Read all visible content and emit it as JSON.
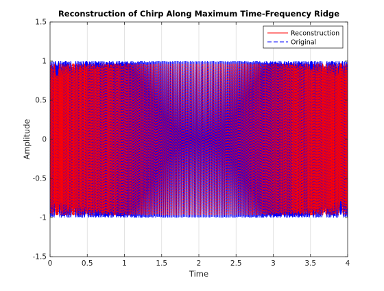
{
  "chart_data": {
    "type": "line",
    "title": "Reconstruction of Chirp Along Maximum Time-Frequency Ridge",
    "xlabel": "Time",
    "ylabel": "Amplitude",
    "xlim": [
      0,
      4
    ],
    "ylim": [
      -1.5,
      1.5
    ],
    "xticks": [
      0,
      0.5,
      1,
      1.5,
      2,
      2.5,
      3,
      3.5,
      4
    ],
    "xtick_labels": [
      "0",
      "0.5",
      "1",
      "1.5",
      "2",
      "2.5",
      "3",
      "3.5",
      "4"
    ],
    "yticks": [
      1.5,
      1,
      0.5,
      0,
      -0.5,
      -1,
      -1.5
    ],
    "ytick_labels": [
      "1.5",
      "1",
      "0.5",
      "0",
      "-0.5",
      "-1",
      "-1.5"
    ],
    "grid": "vertical",
    "legend_position": "top-right",
    "series": [
      {
        "name": "Reconstruction",
        "color": "#ff0000",
        "style": "solid",
        "amplitude": 1.0
      },
      {
        "name": "Original",
        "color": "#0000ff",
        "style": "dashed",
        "amplitude": 1.0
      }
    ]
  }
}
